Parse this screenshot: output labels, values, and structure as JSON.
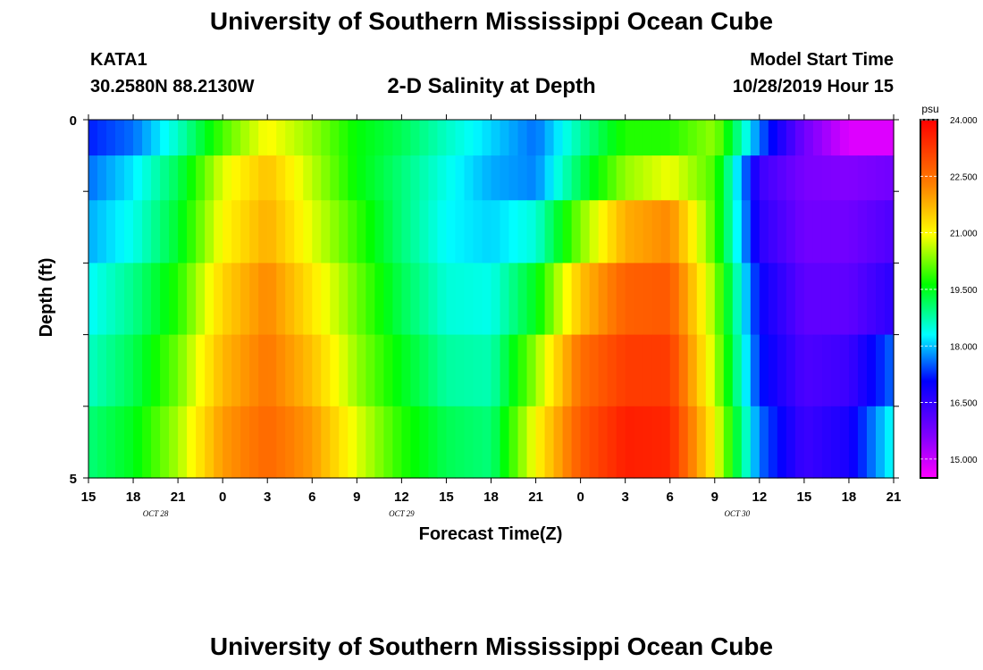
{
  "header": {
    "title": "University of Southern Mississippi Ocean Cube",
    "station_id": "KATA1",
    "station_coords": "30.2580N 88.2130W",
    "subtitle": "2-D Salinity at Depth",
    "model_start_label": "Model Start Time",
    "model_start_value": "10/28/2019 Hour 15"
  },
  "footer": {
    "title": "University of Southern Mississippi Ocean Cube"
  },
  "chart_data": {
    "type": "heatmap",
    "xlabel": "Forecast Time(Z)",
    "ylabel": "Depth (ft)",
    "x_tick_labels": [
      "15",
      "18",
      "21",
      "0",
      "3",
      "6",
      "9",
      "12",
      "15",
      "18",
      "21",
      "0",
      "3",
      "6",
      "9",
      "12",
      "15",
      "18",
      "21"
    ],
    "date_labels": [
      {
        "label": "OCT 28",
        "tick_index": 1.5
      },
      {
        "label": "OCT 29",
        "tick_index": 7
      },
      {
        "label": "OCT 30",
        "tick_index": 14.5
      }
    ],
    "y_tick_labels": [
      "0",
      "5"
    ],
    "yrange": [
      0,
      5
    ],
    "x_hours": [
      0,
      54
    ],
    "colorbar": {
      "unit": "psu",
      "min": 14.5,
      "max": 24.0,
      "tick_labels": [
        "24.000",
        "22.500",
        "21.000",
        "19.500",
        "18.000",
        "16.500",
        "15.000"
      ],
      "tick_values": [
        24.0,
        22.5,
        21.0,
        19.5,
        18.0,
        16.5,
        15.0
      ],
      "colors": [
        "#ff00ff",
        "#7f00ff",
        "#0000ff",
        "#00ffff",
        "#00ff00",
        "#ffff00",
        "#ff7f00",
        "#ff0000"
      ]
    },
    "depth_rows": [
      {
        "depth_ft": 0.25,
        "hours": [
          0,
          3,
          6,
          9,
          12,
          15,
          18,
          21,
          24,
          27,
          30,
          33,
          36,
          39,
          42,
          45,
          48,
          51,
          54
        ],
        "salinity": [
          17.2,
          17.6,
          18.6,
          20.0,
          21.0,
          20.4,
          19.6,
          19.2,
          18.6,
          18.1,
          17.6,
          18.8,
          19.8,
          19.8,
          20.4,
          17.6,
          15.8,
          14.8,
          14.8
        ]
      },
      {
        "depth_ft": 0.75,
        "hours": [
          0,
          3,
          6,
          9,
          12,
          15,
          18,
          21,
          24,
          27,
          30,
          33,
          36,
          39,
          42,
          45,
          48,
          51,
          54
        ],
        "salinity": [
          17.6,
          18.2,
          19.2,
          20.8,
          21.6,
          20.6,
          19.6,
          19.0,
          18.4,
          17.9,
          17.7,
          19.2,
          20.4,
          20.9,
          20.0,
          16.4,
          15.7,
          15.6,
          15.8
        ]
      },
      {
        "depth_ft": 1.5,
        "hours": [
          0,
          3,
          6,
          9,
          12,
          15,
          18,
          21,
          24,
          27,
          30,
          33,
          36,
          39,
          42,
          45,
          48,
          51,
          54
        ],
        "salinity": [
          17.9,
          18.4,
          19.4,
          21.0,
          21.8,
          20.8,
          19.9,
          19.0,
          18.3,
          18.1,
          18.5,
          20.3,
          21.8,
          22.2,
          20.0,
          16.6,
          15.8,
          15.8,
          16.2
        ]
      },
      {
        "depth_ft": 2.5,
        "hours": [
          0,
          3,
          6,
          9,
          12,
          15,
          18,
          21,
          24,
          27,
          30,
          33,
          36,
          39,
          42,
          45,
          48,
          51,
          54
        ],
        "salinity": [
          18.3,
          18.9,
          19.8,
          21.4,
          22.2,
          21.2,
          20.2,
          19.2,
          18.5,
          18.4,
          19.5,
          21.6,
          22.7,
          22.8,
          20.4,
          17.0,
          16.0,
          16.0,
          16.6
        ]
      },
      {
        "depth_ft": 3.5,
        "hours": [
          0,
          3,
          6,
          9,
          12,
          15,
          18,
          21,
          24,
          27,
          30,
          33,
          36,
          39,
          42,
          45,
          48,
          51,
          54
        ],
        "salinity": [
          18.6,
          19.2,
          20.2,
          21.7,
          22.4,
          21.6,
          20.4,
          19.5,
          18.8,
          18.7,
          20.4,
          22.5,
          23.2,
          23.2,
          20.6,
          17.2,
          16.2,
          16.4,
          17.6
        ]
      },
      {
        "depth_ft": 4.5,
        "hours": [
          0,
          3,
          6,
          9,
          12,
          15,
          18,
          21,
          24,
          27,
          30,
          33,
          36,
          39,
          42,
          45,
          48,
          51,
          54
        ],
        "salinity": [
          19.0,
          19.5,
          20.5,
          22.0,
          22.6,
          22.0,
          20.8,
          19.8,
          19.2,
          19.0,
          21.0,
          22.8,
          23.6,
          23.5,
          21.0,
          17.6,
          16.4,
          16.8,
          18.4
        ]
      }
    ]
  }
}
